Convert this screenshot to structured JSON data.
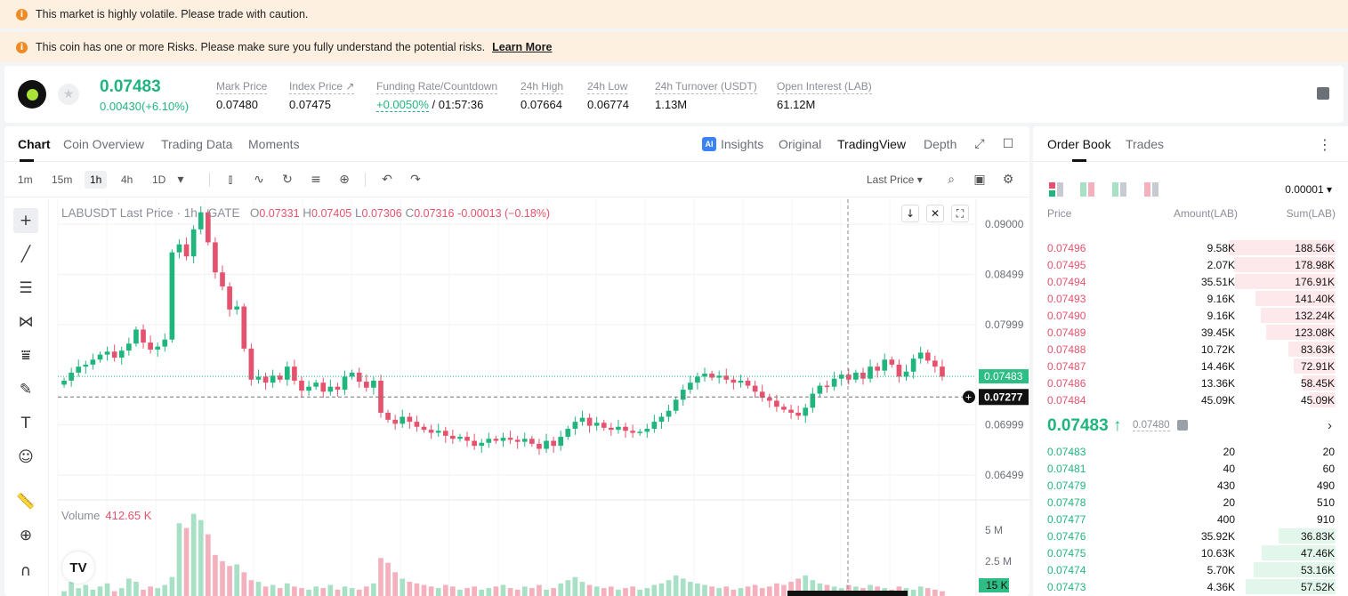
{
  "warnings": {
    "volatile": "This market is highly volatile. Please trade with caution.",
    "risk": "This coin has one or more Risks. Please make sure you fully understand the potential risks.",
    "learn_more": "Learn More"
  },
  "ticker": {
    "last_price": "0.07483",
    "change": "0.00430(+6.10%)",
    "stats": [
      {
        "label": "Mark Price",
        "value": "0.07480"
      },
      {
        "label": "Index Price ↗",
        "value": "0.07475"
      },
      {
        "label": "Funding Rate/Countdown",
        "value_green": "+0.0050%",
        "value": "/ 01:57:36"
      },
      {
        "label": "24h High",
        "value": "0.07664"
      },
      {
        "label": "24h Low",
        "value": "0.06774"
      },
      {
        "label": "24h Turnover (USDT)",
        "value": "1.13M"
      },
      {
        "label": "Open Interest (LAB)",
        "value": "61.12M"
      }
    ]
  },
  "chart_tabs": [
    "Chart",
    "Coin Overview",
    "Trading Data",
    "Moments"
  ],
  "view_tabs": [
    "Insights",
    "Original",
    "TradingView",
    "Depth"
  ],
  "intervals": [
    "1m",
    "15m",
    "1h",
    "4h",
    "1D"
  ],
  "price_source": "Last Price",
  "legend": {
    "symbol": "LABUSDT Last Price · 1h · GATE",
    "o_label": "O",
    "o": "0.07331",
    "h_label": "H",
    "h": "0.07405",
    "l_label": "L",
    "l": "0.07306",
    "c_label": "C",
    "c": "0.07316",
    "change": "-0.00013 (−0.18%)"
  },
  "volume": {
    "label": "Volume",
    "value": "412.65 K"
  },
  "axis": {
    "price_ticks": [
      "0.09000",
      "0.08499",
      "0.07999",
      "0.06999",
      "0.06499"
    ],
    "volume_ticks": [
      "5 M",
      "2.5 M"
    ],
    "last_price_tag": "0.07483",
    "crosshair_tag": "0.07277",
    "volume_tag": "15 K"
  },
  "colors": {
    "up": "#21b57e",
    "down": "#e5526d",
    "up_volume": "#a8e0c6",
    "down_volume": "#f5b0bd",
    "tag_green": "#2ebd85"
  },
  "chart_data": {
    "type": "candlestick",
    "ylim": [
      0.0625,
      0.0925
    ],
    "price_ticks": [
      0.09,
      0.08499,
      0.07999,
      0.06999,
      0.06499
    ],
    "last_price": 0.07483,
    "crosshair_price": 0.07277,
    "close_series_approx": [
      0.0744,
      0.0752,
      0.0758,
      0.076,
      0.0765,
      0.077,
      0.0773,
      0.0767,
      0.0774,
      0.0781,
      0.0795,
      0.0782,
      0.0775,
      0.0778,
      0.0785,
      0.0872,
      0.088,
      0.0868,
      0.0895,
      0.0912,
      0.0882,
      0.0852,
      0.0838,
      0.0815,
      0.0818,
      0.0776,
      0.0745,
      0.0748,
      0.0742,
      0.0749,
      0.0745,
      0.0758,
      0.0744,
      0.0734,
      0.0738,
      0.0742,
      0.0733,
      0.0738,
      0.0735,
      0.0748,
      0.0752,
      0.0743,
      0.0737,
      0.0744,
      0.0712,
      0.0705,
      0.0701,
      0.0708,
      0.0703,
      0.0698,
      0.0695,
      0.0692,
      0.0694,
      0.0689,
      0.0686,
      0.0688,
      0.0684,
      0.0679,
      0.0682,
      0.0686,
      0.0684,
      0.0687,
      0.0685,
      0.0683,
      0.0686,
      0.0681,
      0.0676,
      0.0684,
      0.0679,
      0.0688,
      0.0696,
      0.0703,
      0.0707,
      0.0699,
      0.0702,
      0.0697,
      0.0695,
      0.0698,
      0.0694,
      0.0692,
      0.0693,
      0.0696,
      0.0703,
      0.0708,
      0.0714,
      0.0725,
      0.0735,
      0.0742,
      0.0748,
      0.0751,
      0.0747,
      0.0749,
      0.0745,
      0.0742,
      0.0744,
      0.0739,
      0.0733,
      0.0727,
      0.0724,
      0.0718,
      0.0715,
      0.0712,
      0.0709,
      0.0717,
      0.0731,
      0.0739,
      0.0738,
      0.0746,
      0.075,
      0.0745,
      0.0752,
      0.0746,
      0.0758,
      0.0754,
      0.0765,
      0.076,
      0.0748,
      0.0753,
      0.0766,
      0.0772,
      0.0764,
      0.0758,
      0.0748
    ],
    "volume_series_approx_m": [
      0.3,
      0.9,
      0.5,
      0.7,
      0.4,
      0.6,
      0.8,
      0.3,
      0.5,
      1.1,
      0.9,
      0.4,
      0.6,
      0.5,
      0.7,
      1.2,
      4.6,
      4.3,
      5.2,
      4.8,
      3.9,
      2.6,
      2.2,
      1.9,
      2.0,
      1.5,
      1.0,
      0.9,
      0.6,
      0.7,
      0.5,
      0.8,
      0.6,
      0.5,
      0.4,
      0.6,
      0.5,
      0.7,
      0.4,
      0.6,
      0.5,
      0.4,
      0.6,
      0.8,
      2.4,
      2.1,
      1.5,
      1.1,
      0.9,
      0.8,
      0.7,
      0.6,
      0.5,
      0.7,
      0.6,
      0.4,
      0.5,
      0.6,
      0.4,
      0.5,
      0.6,
      0.7,
      0.5,
      0.4,
      0.6,
      0.5,
      0.7,
      0.4,
      0.5,
      0.8,
      1.0,
      1.2,
      0.9,
      0.7,
      0.6,
      0.5,
      0.6,
      0.4,
      0.5,
      0.6,
      0.4,
      0.5,
      0.7,
      0.8,
      1.0,
      1.3,
      1.1,
      0.9,
      0.8,
      0.7,
      0.6,
      0.5,
      0.6,
      0.4,
      0.5,
      0.6,
      0.7,
      0.5,
      0.6,
      0.8,
      0.7,
      0.9,
      1.1,
      1.3,
      1.0,
      0.8,
      0.7,
      0.6,
      0.5,
      0.7,
      0.6,
      0.5,
      0.7,
      0.6,
      0.5,
      0.4,
      0.6,
      0.5,
      0.4,
      0.6,
      0.5,
      0.4,
      0.3
    ]
  },
  "orderbook": {
    "tabs": [
      "Order Book",
      "Trades"
    ],
    "precision": "0.00001",
    "headers": {
      "price": "Price",
      "amount": "Amount(LAB)",
      "sum": "Sum(LAB)"
    },
    "asks": [
      {
        "price": "0.07496",
        "amount": "9.58K",
        "sum": "188.56K",
        "depth": 1.0
      },
      {
        "price": "0.07495",
        "amount": "2.07K",
        "sum": "178.98K",
        "depth": 0.95
      },
      {
        "price": "0.07494",
        "amount": "35.51K",
        "sum": "176.91K",
        "depth": 0.94
      },
      {
        "price": "0.07493",
        "amount": "9.16K",
        "sum": "141.40K",
        "depth": 0.75
      },
      {
        "price": "0.07490",
        "amount": "9.16K",
        "sum": "132.24K",
        "depth": 0.7
      },
      {
        "price": "0.07489",
        "amount": "39.45K",
        "sum": "123.08K",
        "depth": 0.65
      },
      {
        "price": "0.07488",
        "amount": "10.72K",
        "sum": "83.63K",
        "depth": 0.44
      },
      {
        "price": "0.07487",
        "amount": "14.46K",
        "sum": "72.91K",
        "depth": 0.39
      },
      {
        "price": "0.07486",
        "amount": "13.36K",
        "sum": "58.45K",
        "depth": 0.31
      },
      {
        "price": "0.07484",
        "amount": "45.09K",
        "sum": "45.09K",
        "depth": 0.24
      }
    ],
    "mid": {
      "price": "0.07483 ↑",
      "mark": "0.07480"
    },
    "bids": [
      {
        "price": "0.07483",
        "amount": "20",
        "sum": "20",
        "depth": 0.0
      },
      {
        "price": "0.07481",
        "amount": "40",
        "sum": "60",
        "depth": 0.0
      },
      {
        "price": "0.07479",
        "amount": "430",
        "sum": "490",
        "depth": 0.0
      },
      {
        "price": "0.07478",
        "amount": "20",
        "sum": "510",
        "depth": 0.0
      },
      {
        "price": "0.07477",
        "amount": "400",
        "sum": "910",
        "depth": 0.0
      },
      {
        "price": "0.07476",
        "amount": "35.92K",
        "sum": "36.83K",
        "depth": 0.53
      },
      {
        "price": "0.07475",
        "amount": "10.63K",
        "sum": "47.46K",
        "depth": 0.69
      },
      {
        "price": "0.07474",
        "amount": "5.70K",
        "sum": "53.16K",
        "depth": 0.77
      },
      {
        "price": "0.07473",
        "amount": "4.36K",
        "sum": "57.52K",
        "depth": 0.84
      }
    ]
  }
}
